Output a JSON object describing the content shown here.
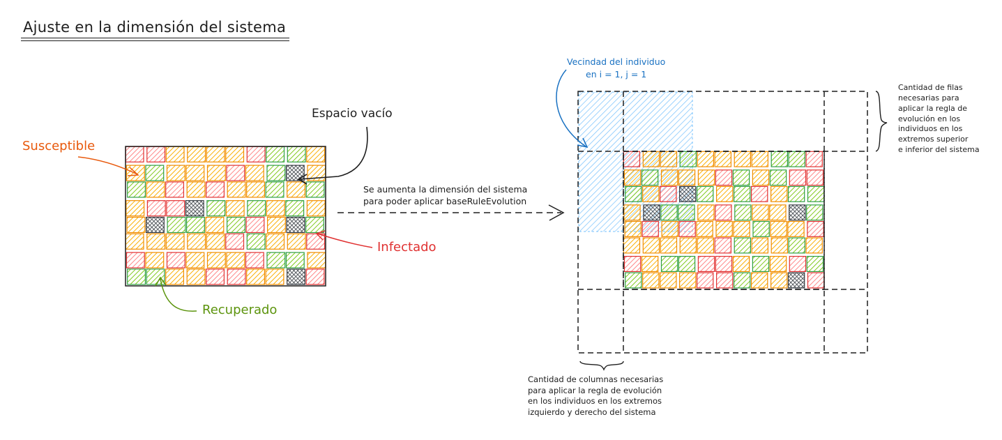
{
  "title": "Ajuste en la dimensión del sistema",
  "labels": {
    "empty": "Espacio vacío",
    "susceptible": "Susceptible",
    "infected": "Infectado",
    "recovered": "Recuperado",
    "expand": [
      "Se aumenta la dimensión del sistema",
      "para poder aplicar baseRuleEvolution"
    ],
    "neighborhood": [
      "Vecindad del individuo",
      "en i = 1, j = 1"
    ],
    "rows_note": [
      "Cantidad de filas",
      "necesarias para",
      "aplicar la regla de",
      "evolución en los",
      "individuos en los",
      "extremos superior",
      "e inferior del sistema"
    ],
    "cols_note": [
      "Cantidad de columnas necesarias",
      "para aplicar la regla de evolución",
      "en los individuos en los extremos",
      "izquierdo y derecho del sistema"
    ]
  },
  "colors": {
    "susceptible": "#fab005",
    "susceptible_stroke": "#f08c00",
    "infected": "#ff8787",
    "infected_stroke": "#e03131",
    "recovered": "#82c91e",
    "recovered_stroke": "#2f9e44",
    "empty": "#343a40",
    "neighborhood": "#a5d8ff",
    "neighborhood_stroke": "#1971c2",
    "ink": "#1e1e1e"
  },
  "grid_left": [
    "IISSSSIRRS",
    "SRSSSISRES",
    "RSISISSRSR",
    "SIIERSRSRS",
    "SERRSRISER",
    "SSSSSIRSSI",
    "ISISSSIRRS",
    "RRSSIISSEI"
  ],
  "grid_right": [
    "ISSRSSSSRRI",
    "SRSSSIRSRII",
    "RSIERSRISRR",
    "SERRSIRSSER",
    "SISISSSRSSI",
    "SSSSSIRSSRS",
    "ISRRIISRSIR",
    "RSSSIIRSSEI"
  ]
}
